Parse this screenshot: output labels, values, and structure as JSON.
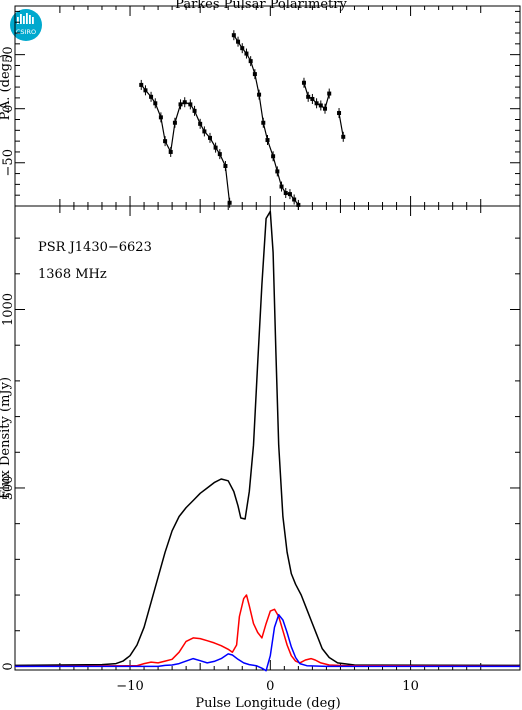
{
  "header": {
    "title": "Parkes Pulsar Polarimetry",
    "logo_text": "CSIRO"
  },
  "chart_data": [
    {
      "type": "scatter",
      "panel": "top",
      "ylabel": "P.A. (deg.)",
      "xlim": [
        -18.2,
        17.8
      ],
      "ylim": [
        -90,
        95
      ],
      "yticks": [
        50,
        0,
        -50
      ],
      "ytick_labels": [
        "50",
        "0",
        "−50"
      ],
      "line_color": "#000000",
      "segments": [
        [
          [
            -9.2,
            22
          ],
          [
            -8.9,
            17
          ],
          [
            -8.5,
            11
          ],
          [
            -8.2,
            5
          ],
          [
            -7.8,
            -8
          ],
          [
            -7.5,
            -30
          ],
          [
            -7.1,
            -40
          ],
          [
            -6.8,
            -13
          ],
          [
            -6.4,
            4
          ],
          [
            -6.1,
            6
          ],
          [
            -5.7,
            4
          ],
          [
            -5.4,
            -2
          ],
          [
            -5.0,
            -14
          ],
          [
            -4.7,
            -21
          ],
          [
            -4.3,
            -27
          ],
          [
            -3.9,
            -36
          ],
          [
            -3.6,
            -42
          ],
          [
            -3.2,
            -53
          ],
          [
            -2.9,
            -87
          ]
        ],
        [
          [
            -2.6,
            68
          ],
          [
            -2.3,
            62
          ],
          [
            -2.0,
            56
          ],
          [
            -1.7,
            51
          ],
          [
            -1.4,
            44
          ],
          [
            -1.1,
            32
          ],
          [
            -0.8,
            13
          ],
          [
            -0.5,
            -13
          ],
          [
            -0.2,
            -29
          ],
          [
            0.2,
            -44
          ],
          [
            0.5,
            -58
          ],
          [
            0.8,
            -72
          ],
          [
            1.1,
            -78
          ],
          [
            1.4,
            -79
          ],
          [
            1.7,
            -84
          ],
          [
            2.0,
            -89
          ]
        ],
        [
          [
            2.4,
            24
          ],
          [
            2.7,
            11
          ],
          [
            3.0,
            9
          ],
          [
            3.3,
            5
          ],
          [
            3.6,
            3
          ],
          [
            3.9,
            0
          ],
          [
            4.2,
            14
          ]
        ],
        [
          [
            4.9,
            -4
          ],
          [
            5.2,
            -26
          ]
        ]
      ]
    },
    {
      "type": "line",
      "panel": "bottom",
      "xlabel": "Pulse Longitude (deg)",
      "ylabel": "Flux Density (mJy)",
      "xlim": [
        -18.2,
        17.8
      ],
      "ylim": [
        -10,
        1290
      ],
      "xticks": [
        -10,
        0,
        10
      ],
      "xtick_labels": [
        "−10",
        "0",
        "10"
      ],
      "yticks": [
        0,
        500,
        1000
      ],
      "ytick_labels": [
        "0",
        "500",
        "1000"
      ],
      "annotations": [
        "PSR J1430−6623",
        "1368 MHz"
      ],
      "series": [
        {
          "color": "#000000",
          "points": [
            [
              -18.2,
              3
            ],
            [
              -12,
              5
            ],
            [
              -11,
              8
            ],
            [
              -10.5,
              15
            ],
            [
              -10,
              30
            ],
            [
              -9.5,
              60
            ],
            [
              -9,
              110
            ],
            [
              -8.5,
              180
            ],
            [
              -8,
              250
            ],
            [
              -7.5,
              320
            ],
            [
              -7,
              380
            ],
            [
              -6.5,
              420
            ],
            [
              -6,
              445
            ],
            [
              -5.5,
              465
            ],
            [
              -5,
              485
            ],
            [
              -4.5,
              500
            ],
            [
              -4,
              515
            ],
            [
              -3.5,
              525
            ],
            [
              -3,
              520
            ],
            [
              -2.6,
              490
            ],
            [
              -2.3,
              450
            ],
            [
              -2.1,
              416
            ],
            [
              -1.8,
              413
            ],
            [
              -1.5,
              490
            ],
            [
              -1.2,
              620
            ],
            [
              -0.9,
              850
            ],
            [
              -0.6,
              1070
            ],
            [
              -0.3,
              1255
            ],
            [
              0,
              1275
            ],
            [
              0.2,
              1160
            ],
            [
              0.4,
              880
            ],
            [
              0.6,
              620
            ],
            [
              0.9,
              420
            ],
            [
              1.2,
              320
            ],
            [
              1.5,
              260
            ],
            [
              1.8,
              230
            ],
            [
              2.2,
              200
            ],
            [
              2.6,
              160
            ],
            [
              3.0,
              120
            ],
            [
              3.3,
              90
            ],
            [
              3.7,
              50
            ],
            [
              4.2,
              25
            ],
            [
              4.8,
              10
            ],
            [
              6,
              4
            ],
            [
              17.8,
              3
            ]
          ]
        },
        {
          "color": "#ff0000",
          "points": [
            [
              -18.2,
              0
            ],
            [
              -9.5,
              2
            ],
            [
              -9,
              8
            ],
            [
              -8.5,
              12
            ],
            [
              -8,
              10
            ],
            [
              -7.5,
              15
            ],
            [
              -7,
              20
            ],
            [
              -6.5,
              40
            ],
            [
              -6,
              70
            ],
            [
              -5.5,
              80
            ],
            [
              -5,
              78
            ],
            [
              -4.5,
              72
            ],
            [
              -4,
              66
            ],
            [
              -3.5,
              58
            ],
            [
              -3,
              48
            ],
            [
              -2.7,
              40
            ],
            [
              -2.4,
              60
            ],
            [
              -2.2,
              140
            ],
            [
              -1.9,
              190
            ],
            [
              -1.7,
              200
            ],
            [
              -1.5,
              170
            ],
            [
              -1.2,
              120
            ],
            [
              -0.9,
              95
            ],
            [
              -0.6,
              80
            ],
            [
              -0.3,
              120
            ],
            [
              0,
              155
            ],
            [
              0.3,
              160
            ],
            [
              0.6,
              140
            ],
            [
              0.9,
              100
            ],
            [
              1.2,
              60
            ],
            [
              1.5,
              30
            ],
            [
              1.8,
              15
            ],
            [
              2.1,
              10
            ],
            [
              2.5,
              18
            ],
            [
              2.9,
              22
            ],
            [
              3.2,
              18
            ],
            [
              3.6,
              10
            ],
            [
              4.2,
              4
            ],
            [
              5.5,
              2
            ],
            [
              17.8,
              1
            ]
          ]
        },
        {
          "color": "#0000ff",
          "points": [
            [
              -18.2,
              0
            ],
            [
              -8,
              0
            ],
            [
              -7.5,
              3
            ],
            [
              -7,
              4
            ],
            [
              -6.5,
              8
            ],
            [
              -6,
              15
            ],
            [
              -5.5,
              22
            ],
            [
              -5,
              16
            ],
            [
              -4.5,
              10
            ],
            [
              -4,
              14
            ],
            [
              -3.5,
              22
            ],
            [
              -3,
              35
            ],
            [
              -2.7,
              32
            ],
            [
              -2.3,
              20
            ],
            [
              -1.9,
              10
            ],
            [
              -1.5,
              5
            ],
            [
              -1.0,
              2
            ],
            [
              -0.6,
              -5
            ],
            [
              -0.3,
              -12
            ],
            [
              0,
              30
            ],
            [
              0.3,
              110
            ],
            [
              0.6,
              145
            ],
            [
              0.9,
              130
            ],
            [
              1.2,
              95
            ],
            [
              1.5,
              55
            ],
            [
              1.8,
              25
            ],
            [
              2.1,
              8
            ],
            [
              2.6,
              2
            ],
            [
              4,
              0
            ],
            [
              17.8,
              0
            ]
          ]
        }
      ]
    }
  ]
}
